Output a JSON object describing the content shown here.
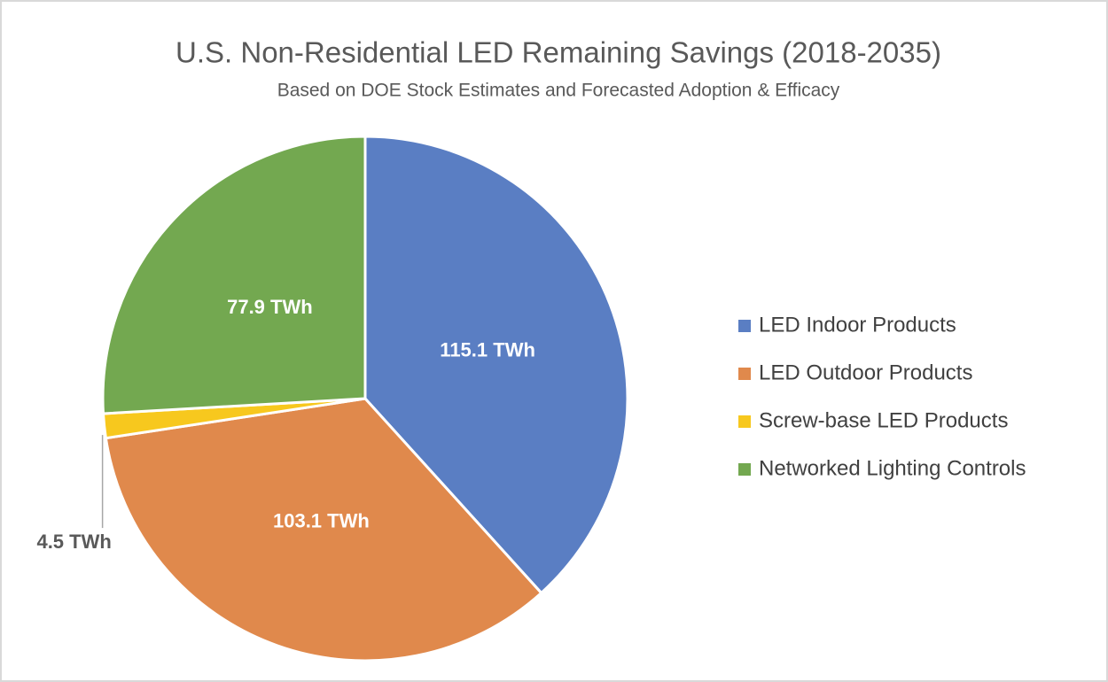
{
  "chart_data": {
    "type": "pie",
    "title": "U.S. Non-Residential LED Remaining Savings (2018-2035)",
    "subtitle": "Based on DOE Stock Estimates and Forecasted Adoption & Efficacy",
    "categories": [
      "LED Indoor Products",
      "LED Outdoor Products",
      "Screw-base LED Products",
      "Networked Lighting Controls"
    ],
    "values": [
      115.1,
      103.1,
      4.5,
      77.9
    ],
    "value_labels": [
      "115.1 TWh",
      "103.1 TWh",
      "4.5 TWh",
      "77.9 TWh"
    ],
    "colors": [
      "#5a7ec3",
      "#e0894c",
      "#f7c81e",
      "#73a850"
    ],
    "legend": "right"
  }
}
